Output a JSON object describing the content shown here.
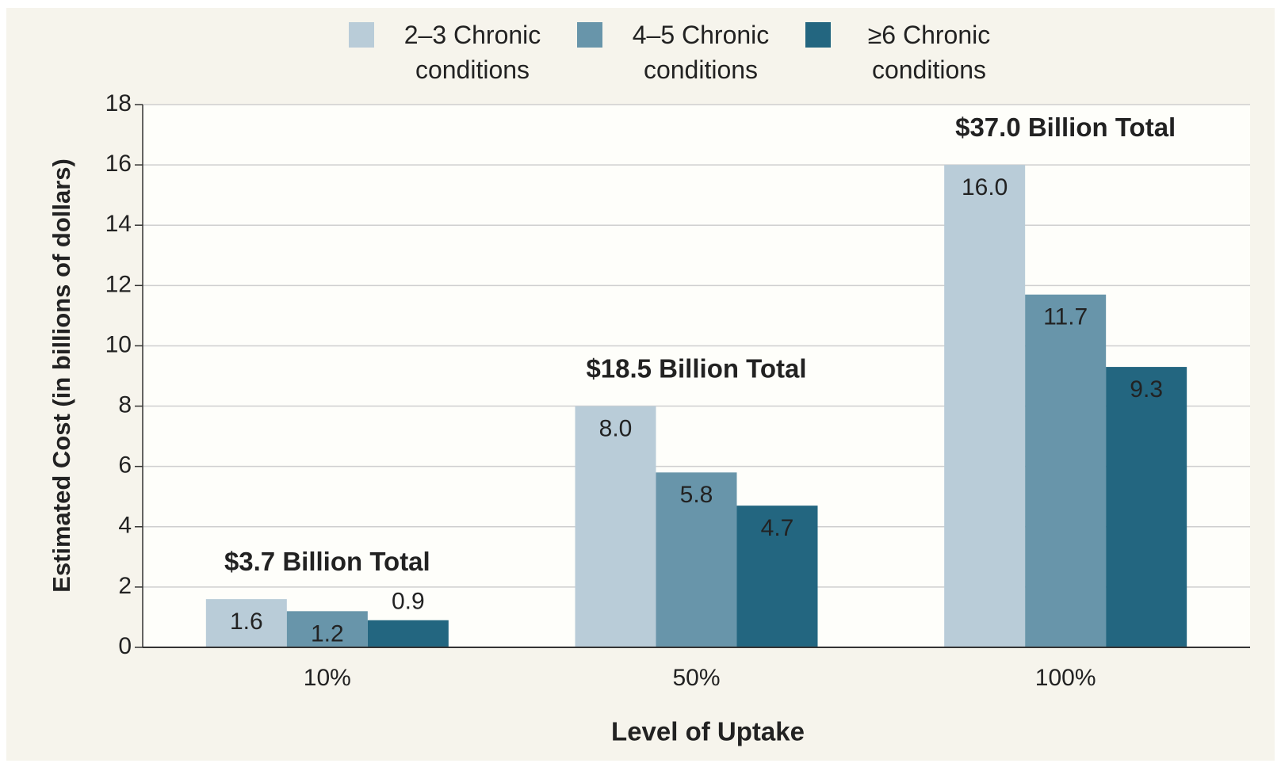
{
  "chart_data": {
    "type": "bar",
    "categories": [
      "10%",
      "50%",
      "100%"
    ],
    "series": [
      {
        "name": "2–3 Chronic conditions",
        "color": "#b9ccd8",
        "values": [
          1.6,
          8.0,
          16.0
        ],
        "value_labels": [
          "1.6",
          "8.0",
          "16.0"
        ]
      },
      {
        "name": "4–5 Chronic conditions",
        "color": "#6895aa",
        "values": [
          1.2,
          5.8,
          11.7
        ],
        "value_labels": [
          "1.2",
          "5.8",
          "11.7"
        ]
      },
      {
        "name": "≥6 Chronic conditions",
        "color": "#236680",
        "values": [
          0.9,
          4.7,
          9.3
        ],
        "value_labels": [
          "0.9",
          "4.7",
          "9.3"
        ]
      }
    ],
    "annotations": [
      "$3.7 Billion Total",
      "$18.5 Billion Total",
      "$37.0 Billion Total"
    ],
    "ylabel": "Estimated Cost (in billions of dollars)",
    "xlabel": "Level of Uptake",
    "ylim": [
      0,
      18
    ],
    "yticks": [
      0,
      2,
      4,
      6,
      8,
      10,
      12,
      14,
      16,
      18
    ],
    "grid": true,
    "legend": "top"
  }
}
